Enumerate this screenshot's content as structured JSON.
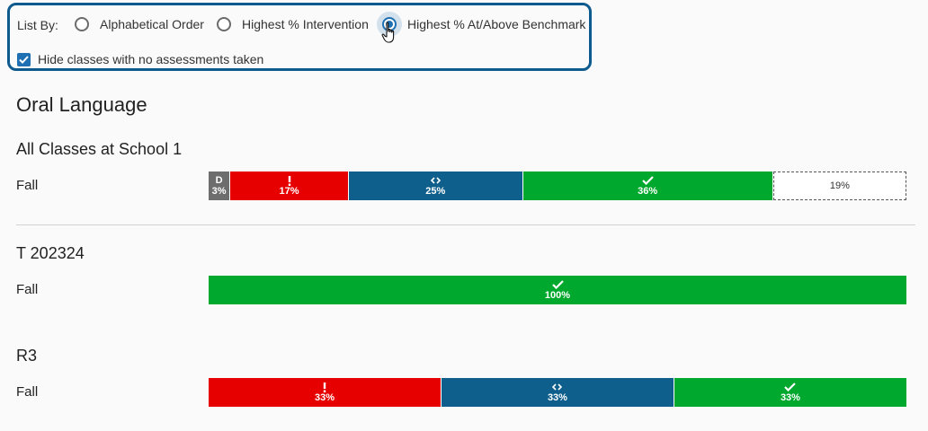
{
  "filters": {
    "list_by_label": "List By:",
    "options": [
      {
        "label": "Alphabetical Order",
        "selected": false
      },
      {
        "label": "Highest % Intervention",
        "selected": false
      },
      {
        "label": "Highest % At/Above Benchmark",
        "selected": true
      }
    ],
    "hide_empty_label": "Hide classes with no assessments taken",
    "hide_empty_checked": true
  },
  "section_title": "Oral Language",
  "groups": [
    {
      "title": "All Classes at School 1",
      "term": "Fall",
      "segments": [
        {
          "category": "D",
          "label": "3%",
          "percent": 3,
          "color": "#6d6d6d"
        },
        {
          "category": "intervention",
          "label": "17%",
          "percent": 17,
          "color": "#e60000"
        },
        {
          "category": "strategic",
          "label": "25%",
          "percent": 25,
          "color": "#0e5f8c"
        },
        {
          "category": "benchmark",
          "label": "36%",
          "percent": 36,
          "color": "#00a82d"
        },
        {
          "category": "not-assessed",
          "label": "19%",
          "percent": 19,
          "color": "#ffffff"
        }
      ]
    },
    {
      "title": "T 202324",
      "term": "Fall",
      "segments": [
        {
          "category": "benchmark",
          "label": "100%",
          "percent": 100,
          "color": "#00a82d"
        }
      ]
    },
    {
      "title": "R3",
      "term": "Fall",
      "segments": [
        {
          "category": "intervention",
          "label": "33%",
          "percent": 33.33,
          "color": "#e60000"
        },
        {
          "category": "strategic",
          "label": "33%",
          "percent": 33.33,
          "color": "#0e5f8c"
        },
        {
          "category": "benchmark",
          "label": "33%",
          "percent": 33.34,
          "color": "#00a82d"
        }
      ]
    }
  ]
}
